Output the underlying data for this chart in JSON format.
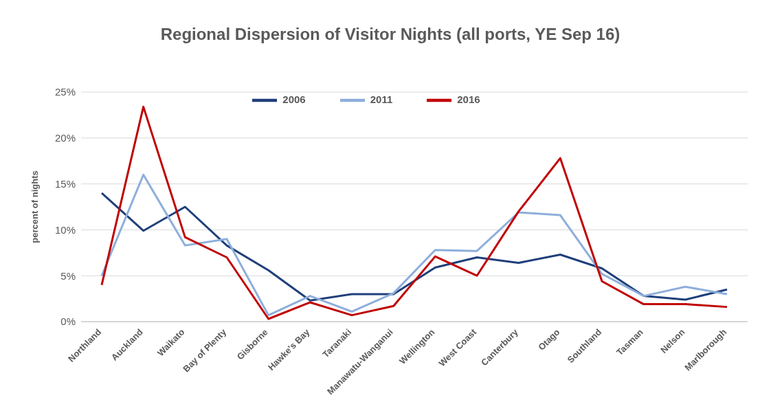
{
  "chart_data": {
    "type": "line",
    "title": "Regional Dispersion of Visitor Nights (all ports, YE Sep 16)",
    "ylabel": "percent of nights",
    "categories": [
      "Northland",
      "Auckland",
      "Waikato",
      "Bay of Plenty",
      "Gisborne",
      "Hawke's Bay",
      "Taranaki",
      "Manawatu-Wanganui",
      "Wellington",
      "West Coast",
      "Canterbury",
      "Otago",
      "Southland",
      "Tasman",
      "Nelson",
      "Marlborough"
    ],
    "series": [
      {
        "name": "2006",
        "color": "#1f3f7a",
        "values": [
          14.0,
          9.9,
          12.5,
          8.3,
          5.6,
          2.3,
          3.0,
          3.0,
          5.9,
          7.0,
          6.4,
          7.3,
          5.8,
          2.8,
          2.4,
          3.5
        ]
      },
      {
        "name": "2011",
        "color": "#8eaedb",
        "values": [
          5.0,
          16.0,
          8.3,
          9.0,
          0.7,
          2.8,
          1.1,
          3.1,
          7.8,
          7.7,
          11.9,
          11.6,
          5.2,
          2.8,
          3.8,
          3.0
        ]
      },
      {
        "name": "2016",
        "color": "#c00000",
        "values": [
          4.0,
          23.4,
          9.2,
          7.0,
          0.3,
          2.1,
          0.7,
          1.7,
          7.1,
          5.0,
          12.0,
          17.8,
          4.4,
          1.9,
          1.9,
          1.6
        ]
      }
    ],
    "ylim": [
      0,
      25
    ],
    "yticks": [
      {
        "value": 0,
        "label": "0%"
      },
      {
        "value": 5,
        "label": "5%"
      },
      {
        "value": 10,
        "label": "10%"
      },
      {
        "value": 15,
        "label": "15%"
      },
      {
        "value": 20,
        "label": "20%"
      },
      {
        "value": 25,
        "label": "25%"
      }
    ],
    "grid": "y",
    "legend": "top",
    "marker": "none",
    "line_style": "solid"
  }
}
